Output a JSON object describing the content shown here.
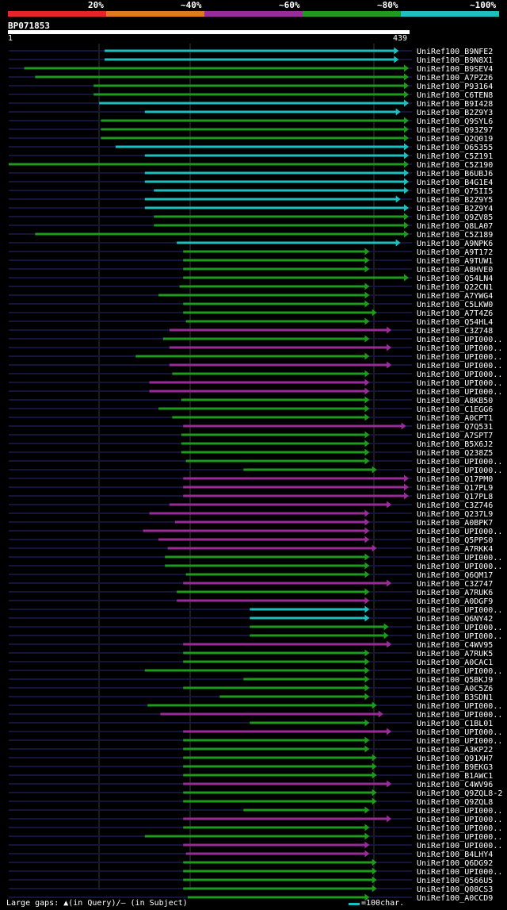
{
  "legend": {
    "labels": [
      "20%",
      "~40%",
      "~60%",
      "~80%",
      "~100%"
    ],
    "colors": [
      "#e8232a",
      "#e07a1e",
      "#992c99",
      "#1e9a1e",
      "#1ebfbf"
    ]
  },
  "query": {
    "name": "BP071853",
    "start": "1",
    "end": "439"
  },
  "footer": {
    "text": "Large gaps: ▲(in Query)/— (in Subject)",
    "scale_text": "=100char.",
    "scale_color": "#1ebfbf"
  },
  "chart_data": {
    "type": "alignment",
    "query_length": 439,
    "hits": [
      {
        "name": "UniRef100_B9NFE2",
        "start": 106,
        "end": 428,
        "identity_class": "~100%",
        "color": "#1ebfbf"
      },
      {
        "name": "UniRef100_B9N8X1",
        "start": 106,
        "end": 428,
        "identity_class": "~100%",
        "color": "#1ebfbf"
      },
      {
        "name": "UniRef100_B9SEV4",
        "start": 18,
        "end": 439,
        "identity_class": "~80%",
        "color": "#1e9a1e"
      },
      {
        "name": "UniRef100_A7PZ26",
        "start": 30,
        "end": 439,
        "identity_class": "~80%",
        "color": "#1e9a1e"
      },
      {
        "name": "UniRef100_P93164",
        "start": 94,
        "end": 439,
        "identity_class": "~80%",
        "color": "#1e9a1e"
      },
      {
        "name": "UniRef100_C6TEN8",
        "start": 94,
        "end": 439,
        "identity_class": "~80%",
        "color": "#1e9a1e"
      },
      {
        "name": "UniRef100_B9I428",
        "start": 100,
        "end": 439,
        "identity_class": "~100%",
        "color": "#1ebfbf"
      },
      {
        "name": "UniRef100_B2Z9Y3",
        "start": 150,
        "end": 430,
        "identity_class": "~100%",
        "color": "#1ebfbf"
      },
      {
        "name": "UniRef100_Q9SYL6",
        "start": 102,
        "end": 439,
        "identity_class": "~80%",
        "color": "#1e9a1e"
      },
      {
        "name": "UniRef100_Q93Z97",
        "start": 102,
        "end": 439,
        "identity_class": "~80%",
        "color": "#1e9a1e"
      },
      {
        "name": "UniRef100_Q2Q019",
        "start": 102,
        "end": 439,
        "identity_class": "~80%",
        "color": "#1e9a1e"
      },
      {
        "name": "UniRef100_O65355",
        "start": 118,
        "end": 439,
        "identity_class": "~100%",
        "color": "#1ebfbf"
      },
      {
        "name": "UniRef100_C5Z191",
        "start": 150,
        "end": 439,
        "identity_class": "~100%",
        "color": "#1ebfbf"
      },
      {
        "name": "UniRef100_C5Z190",
        "start": 1,
        "end": 439,
        "identity_class": "~80%",
        "color": "#1e9a1e"
      },
      {
        "name": "UniRef100_B6UBJ6",
        "start": 150,
        "end": 439,
        "identity_class": "~100%",
        "color": "#1ebfbf"
      },
      {
        "name": "UniRef100_B4G1E4",
        "start": 150,
        "end": 439,
        "identity_class": "~100%",
        "color": "#1ebfbf"
      },
      {
        "name": "UniRef100_Q75II5",
        "start": 160,
        "end": 439,
        "identity_class": "~100%",
        "color": "#1ebfbf"
      },
      {
        "name": "UniRef100_B2Z9Y5",
        "start": 150,
        "end": 430,
        "identity_class": "~100%",
        "color": "#1ebfbf"
      },
      {
        "name": "UniRef100_B2Z9Y4",
        "start": 150,
        "end": 439,
        "identity_class": "~100%",
        "color": "#1ebfbf"
      },
      {
        "name": "UniRef100_Q9ZV85",
        "start": 160,
        "end": 439,
        "identity_class": "~80%",
        "color": "#1e9a1e"
      },
      {
        "name": "UniRef100_Q8LA07",
        "start": 160,
        "end": 439,
        "identity_class": "~80%",
        "color": "#1e9a1e"
      },
      {
        "name": "UniRef100_C5Z189",
        "start": 30,
        "end": 439,
        "identity_class": "~80%",
        "color": "#1e9a1e"
      },
      {
        "name": "UniRef100_A9NPK6",
        "start": 185,
        "end": 430,
        "identity_class": "~100%",
        "color": "#1ebfbf"
      },
      {
        "name": "UniRef100_A9T172",
        "start": 192,
        "end": 396,
        "identity_class": "~80%",
        "color": "#1e9a1e"
      },
      {
        "name": "UniRef100_A9TUW1",
        "start": 192,
        "end": 396,
        "identity_class": "~80%",
        "color": "#1e9a1e"
      },
      {
        "name": "UniRef100_A8HVE0",
        "start": 192,
        "end": 396,
        "identity_class": "~80%",
        "color": "#1e9a1e"
      },
      {
        "name": "UniRef100_Q54LN4",
        "start": 192,
        "end": 439,
        "identity_class": "~80%",
        "color": "#1e9a1e"
      },
      {
        "name": "UniRef100_Q22CN1",
        "start": 188,
        "end": 396,
        "identity_class": "~80%",
        "color": "#1e9a1e"
      },
      {
        "name": "UniRef100_A7YWG4",
        "start": 165,
        "end": 396,
        "identity_class": "~80%",
        "color": "#1e9a1e"
      },
      {
        "name": "UniRef100_C5LKW0",
        "start": 192,
        "end": 396,
        "identity_class": "~80%",
        "color": "#1e9a1e"
      },
      {
        "name": "UniRef100_A7T4Z6",
        "start": 192,
        "end": 404,
        "identity_class": "~80%",
        "color": "#1e9a1e"
      },
      {
        "name": "UniRef100_Q54HL4",
        "start": 195,
        "end": 396,
        "identity_class": "~80%",
        "color": "#1e9a1e"
      },
      {
        "name": "UniRef100_C3Z748",
        "start": 177,
        "end": 420,
        "identity_class": "~60%",
        "color": "#992c99"
      },
      {
        "name": "UniRef100_UPI000..",
        "start": 170,
        "end": 396,
        "identity_class": "~80%",
        "color": "#1e9a1e"
      },
      {
        "name": "UniRef100_UPI000..",
        "start": 177,
        "end": 420,
        "identity_class": "~60%",
        "color": "#992c99"
      },
      {
        "name": "UniRef100_UPI000..",
        "start": 140,
        "end": 396,
        "identity_class": "~80%",
        "color": "#1e9a1e"
      },
      {
        "name": "UniRef100_UPI000..",
        "start": 177,
        "end": 420,
        "identity_class": "~60%",
        "color": "#992c99"
      },
      {
        "name": "UniRef100_UPI000..",
        "start": 180,
        "end": 396,
        "identity_class": "~80%",
        "color": "#1e9a1e"
      },
      {
        "name": "UniRef100_UPI000..",
        "start": 155,
        "end": 396,
        "identity_class": "~60%",
        "color": "#992c99"
      },
      {
        "name": "UniRef100_UPI000..",
        "start": 155,
        "end": 396,
        "identity_class": "~60%",
        "color": "#992c99"
      },
      {
        "name": "UniRef100_A8KB50",
        "start": 190,
        "end": 396,
        "identity_class": "~80%",
        "color": "#1e9a1e"
      },
      {
        "name": "UniRef100_C1EGG6",
        "start": 165,
        "end": 396,
        "identity_class": "~80%",
        "color": "#1e9a1e"
      },
      {
        "name": "UniRef100_A0CPT1",
        "start": 180,
        "end": 396,
        "identity_class": "~80%",
        "color": "#1e9a1e"
      },
      {
        "name": "UniRef100_Q7Q531",
        "start": 192,
        "end": 436,
        "identity_class": "~60%",
        "color": "#992c99"
      },
      {
        "name": "UniRef100_A7SPT7",
        "start": 190,
        "end": 396,
        "identity_class": "~80%",
        "color": "#1e9a1e"
      },
      {
        "name": "UniRef100_B5X6J2",
        "start": 190,
        "end": 396,
        "identity_class": "~80%",
        "color": "#1e9a1e"
      },
      {
        "name": "UniRef100_Q238Z5",
        "start": 190,
        "end": 396,
        "identity_class": "~80%",
        "color": "#1e9a1e"
      },
      {
        "name": "UniRef100_UPI000..",
        "start": 195,
        "end": 396,
        "identity_class": "~80%",
        "color": "#1e9a1e"
      },
      {
        "name": "UniRef100_UPI000..",
        "start": 258,
        "end": 404,
        "identity_class": "~80%",
        "color": "#1e9a1e"
      },
      {
        "name": "UniRef100_Q17PM0",
        "start": 192,
        "end": 439,
        "identity_class": "~60%",
        "color": "#992c99"
      },
      {
        "name": "UniRef100_Q17PL9",
        "start": 192,
        "end": 439,
        "identity_class": "~60%",
        "color": "#992c99"
      },
      {
        "name": "UniRef100_Q17PL8",
        "start": 192,
        "end": 439,
        "identity_class": "~60%",
        "color": "#992c99"
      },
      {
        "name": "UniRef100_C3Z746",
        "start": 177,
        "end": 420,
        "identity_class": "~60%",
        "color": "#992c99"
      },
      {
        "name": "UniRef100_Q237L9",
        "start": 155,
        "end": 396,
        "identity_class": "~60%",
        "color": "#992c99"
      },
      {
        "name": "UniRef100_A0BPK7",
        "start": 183,
        "end": 396,
        "identity_class": "~60%",
        "color": "#992c99"
      },
      {
        "name": "UniRef100_UPI000..",
        "start": 148,
        "end": 396,
        "identity_class": "~60%",
        "color": "#992c99"
      },
      {
        "name": "UniRef100_Q5PPS0",
        "start": 165,
        "end": 396,
        "identity_class": "~60%",
        "color": "#992c99"
      },
      {
        "name": "UniRef100_A7RKK4",
        "start": 175,
        "end": 404,
        "identity_class": "~60%",
        "color": "#992c99"
      },
      {
        "name": "UniRef100_UPI000..",
        "start": 172,
        "end": 396,
        "identity_class": "~80%",
        "color": "#1e9a1e"
      },
      {
        "name": "UniRef100_UPI000..",
        "start": 172,
        "end": 396,
        "identity_class": "~80%",
        "color": "#1e9a1e"
      },
      {
        "name": "UniRef100_Q6QM17",
        "start": 195,
        "end": 396,
        "identity_class": "~80%",
        "color": "#1e9a1e"
      },
      {
        "name": "UniRef100_C3Z747",
        "start": 192,
        "end": 420,
        "identity_class": "~60%",
        "color": "#992c99"
      },
      {
        "name": "UniRef100_A7RUK6",
        "start": 185,
        "end": 396,
        "identity_class": "~80%",
        "color": "#1e9a1e"
      },
      {
        "name": "UniRef100_A0DGF9",
        "start": 185,
        "end": 396,
        "identity_class": "~60%",
        "color": "#992c99"
      },
      {
        "name": "UniRef100_UPI000..",
        "start": 265,
        "end": 396,
        "identity_class": "~100%",
        "color": "#1ebfbf"
      },
      {
        "name": "UniRef100_Q6NY42",
        "start": 265,
        "end": 396,
        "identity_class": "~100%",
        "color": "#1ebfbf"
      },
      {
        "name": "UniRef100_UPI000..",
        "start": 265,
        "end": 417,
        "identity_class": "~80%",
        "color": "#1e9a1e"
      },
      {
        "name": "UniRef100_UPI000..",
        "start": 265,
        "end": 417,
        "identity_class": "~80%",
        "color": "#1e9a1e"
      },
      {
        "name": "UniRef100_C4WV95",
        "start": 192,
        "end": 420,
        "identity_class": "~60%",
        "color": "#992c99"
      },
      {
        "name": "UniRef100_A7RUK5",
        "start": 192,
        "end": 396,
        "identity_class": "~80%",
        "color": "#1e9a1e"
      },
      {
        "name": "UniRef100_A0CAC1",
        "start": 192,
        "end": 396,
        "identity_class": "~80%",
        "color": "#1e9a1e"
      },
      {
        "name": "UniRef100_UPI000..",
        "start": 150,
        "end": 396,
        "identity_class": "~80%",
        "color": "#1e9a1e"
      },
      {
        "name": "UniRef100_Q5BKJ9",
        "start": 258,
        "end": 396,
        "identity_class": "~80%",
        "color": "#1e9a1e"
      },
      {
        "name": "UniRef100_A0C5Z6",
        "start": 192,
        "end": 396,
        "identity_class": "~80%",
        "color": "#1e9a1e"
      },
      {
        "name": "UniRef100_B3SDN1",
        "start": 232,
        "end": 396,
        "identity_class": "~80%",
        "color": "#1e9a1e"
      },
      {
        "name": "UniRef100_UPI000..",
        "start": 153,
        "end": 404,
        "identity_class": "~80%",
        "color": "#1e9a1e"
      },
      {
        "name": "UniRef100_UPI000..",
        "start": 167,
        "end": 411,
        "identity_class": "~60%",
        "color": "#992c99"
      },
      {
        "name": "UniRef100_C1BL01",
        "start": 265,
        "end": 396,
        "identity_class": "~80%",
        "color": "#1e9a1e"
      },
      {
        "name": "UniRef100_UPI000..",
        "start": 192,
        "end": 420,
        "identity_class": "~60%",
        "color": "#992c99"
      },
      {
        "name": "UniRef100_UPI000..",
        "start": 192,
        "end": 396,
        "identity_class": "~80%",
        "color": "#1e9a1e"
      },
      {
        "name": "UniRef100_A3KP22",
        "start": 192,
        "end": 396,
        "identity_class": "~80%",
        "color": "#1e9a1e"
      },
      {
        "name": "UniRef100_Q91XH7",
        "start": 192,
        "end": 404,
        "identity_class": "~80%",
        "color": "#1e9a1e"
      },
      {
        "name": "UniRef100_B9EKG3",
        "start": 192,
        "end": 404,
        "identity_class": "~80%",
        "color": "#1e9a1e"
      },
      {
        "name": "UniRef100_B1AWC1",
        "start": 192,
        "end": 404,
        "identity_class": "~80%",
        "color": "#1e9a1e"
      },
      {
        "name": "UniRef100_C4WV96",
        "start": 192,
        "end": 420,
        "identity_class": "~60%",
        "color": "#992c99"
      },
      {
        "name": "UniRef100_Q9ZQL8-2",
        "start": 192,
        "end": 404,
        "identity_class": "~80%",
        "color": "#1e9a1e"
      },
      {
        "name": "UniRef100_Q9ZQL8",
        "start": 192,
        "end": 404,
        "identity_class": "~80%",
        "color": "#1e9a1e"
      },
      {
        "name": "UniRef100_UPI000..",
        "start": 258,
        "end": 396,
        "identity_class": "~80%",
        "color": "#1e9a1e"
      },
      {
        "name": "UniRef100_UPI000..",
        "start": 192,
        "end": 420,
        "identity_class": "~60%",
        "color": "#992c99"
      },
      {
        "name": "UniRef100_UPI000..",
        "start": 192,
        "end": 396,
        "identity_class": "~80%",
        "color": "#1e9a1e"
      },
      {
        "name": "UniRef100_UPI000..",
        "start": 150,
        "end": 396,
        "identity_class": "~80%",
        "color": "#1e9a1e"
      },
      {
        "name": "UniRef100_UPI000..",
        "start": 192,
        "end": 396,
        "identity_class": "~60%",
        "color": "#992c99"
      },
      {
        "name": "UniRef100_B4LHY4",
        "start": 195,
        "end": 396,
        "identity_class": "~60%",
        "color": "#992c99"
      },
      {
        "name": "UniRef100_Q6DG92",
        "start": 192,
        "end": 404,
        "identity_class": "~80%",
        "color": "#1e9a1e"
      },
      {
        "name": "UniRef100_UPI000..",
        "start": 192,
        "end": 404,
        "identity_class": "~80%",
        "color": "#1e9a1e"
      },
      {
        "name": "UniRef100_Q566U5",
        "start": 192,
        "end": 404,
        "identity_class": "~80%",
        "color": "#1e9a1e"
      },
      {
        "name": "UniRef100_Q08CS3",
        "start": 192,
        "end": 404,
        "identity_class": "~80%",
        "color": "#1e9a1e"
      },
      {
        "name": "UniRef100_A0CCD9",
        "start": 197,
        "end": 396,
        "identity_class": "~80%",
        "color": "#1e9a1e"
      }
    ]
  }
}
